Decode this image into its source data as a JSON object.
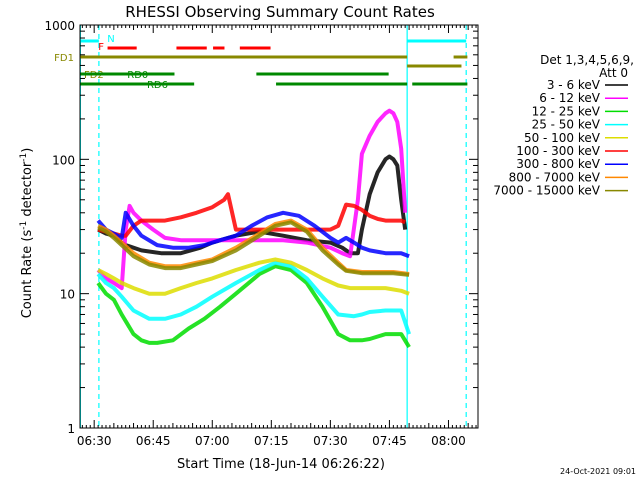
{
  "chart_data": {
    "type": "line",
    "title": "RHESSI Observing Summary Count Rates",
    "xlabel": "Start Time (18-Jun-14 06:26:22)",
    "ylabel_main": "Count Rate (s",
    "ylabel_sup1": "-1",
    "ylabel_mid": " detector",
    "ylabel_sup2": "-1",
    "ylabel_end": ")",
    "yscale": "log",
    "ylim": [
      1,
      1000
    ],
    "xlim_min": [
      386.4,
      487.5
    ],
    "x_ticks": [
      {
        "label": "06:30",
        "m": 390
      },
      {
        "label": "06:45",
        "m": 405
      },
      {
        "label": "07:00",
        "m": 420
      },
      {
        "label": "07:15",
        "m": 435
      },
      {
        "label": "07:30",
        "m": 450
      },
      {
        "label": "07:45",
        "m": 465
      },
      {
        "label": "08:00",
        "m": 480
      }
    ],
    "y_ticks": [
      {
        "label": "1",
        "v": 1
      },
      {
        "label": "10",
        "v": 10
      },
      {
        "label": "100",
        "v": 100
      },
      {
        "label": "1000",
        "v": 1000
      }
    ],
    "legend": {
      "header1": "Det 1,3,4,5,6,9,",
      "header2": "Att 0",
      "entries": [
        {
          "label": "3 - 6 keV",
          "color": "#000000"
        },
        {
          "label": "6 - 12 keV",
          "color": "#ff00ff"
        },
        {
          "label": "12 - 25 keV",
          "color": "#00dd00"
        },
        {
          "label": "25 - 50 keV",
          "color": "#00ffff"
        },
        {
          "label": "50 - 100 keV",
          "color": "#dddd00"
        },
        {
          "label": "100 - 300 keV",
          "color": "#ff0000"
        },
        {
          "label": "300 - 800 keV",
          "color": "#0000ff"
        },
        {
          "label": "800 - 7000 keV",
          "color": "#ff8800"
        },
        {
          "label": "7000 - 15000 keV",
          "color": "#888800"
        }
      ]
    },
    "series": [
      {
        "name": "3 - 6 keV",
        "color": "#000000",
        "x": [
          391,
          393,
          395,
          397,
          398,
          402,
          407,
          412,
          417,
          420,
          426,
          432,
          438,
          444,
          450,
          453,
          455,
          457,
          458,
          460,
          462,
          464,
          465,
          466,
          467,
          468,
          469
        ],
        "y": [
          30,
          28,
          27,
          24,
          23,
          21,
          20,
          20,
          22,
          24,
          27,
          29,
          27,
          25,
          24,
          22,
          20,
          20,
          30,
          55,
          80,
          100,
          105,
          100,
          90,
          50,
          30
        ]
      },
      {
        "name": "6 - 12 keV",
        "color": "#ff00ff",
        "x": [
          391,
          393,
          395,
          397,
          398,
          399,
          400,
          402,
          405,
          408,
          412,
          417,
          420,
          426,
          432,
          438,
          444,
          450,
          453,
          455,
          457,
          458,
          460,
          462,
          464,
          465,
          466,
          467,
          468,
          469
        ],
        "y": [
          15,
          13,
          12,
          11,
          30,
          45,
          40,
          35,
          30,
          26,
          25,
          25,
          25,
          25,
          25,
          25,
          24,
          22,
          20,
          19,
          50,
          110,
          150,
          190,
          220,
          230,
          220,
          190,
          120,
          40
        ]
      },
      {
        "name": "12 - 25 keV",
        "color": "#00dd00",
        "x": [
          391,
          393,
          395,
          397,
          400,
          402,
          404,
          406,
          410,
          414,
          418,
          422,
          426,
          432,
          436,
          440,
          444,
          448,
          452,
          455,
          457,
          458,
          460,
          464,
          468,
          470
        ],
        "y": [
          12,
          10,
          9,
          7,
          5,
          4.5,
          4.3,
          4.3,
          4.5,
          5.5,
          6.5,
          8,
          10,
          14,
          16,
          15,
          12,
          8,
          5,
          4.5,
          4.5,
          4.5,
          4.6,
          5,
          5,
          4
        ]
      },
      {
        "name": "25 - 50 keV",
        "color": "#00ffff",
        "x": [
          391,
          393,
          395,
          397,
          400,
          404,
          408,
          412,
          416,
          420,
          426,
          432,
          436,
          440,
          444,
          448,
          452,
          456,
          458,
          460,
          464,
          468,
          470
        ],
        "y": [
          14,
          12,
          11,
          9.5,
          7.5,
          6.5,
          6.5,
          7,
          8,
          9.5,
          12,
          15,
          17,
          16,
          13,
          9.5,
          7,
          6.8,
          7,
          7.3,
          7.5,
          7.5,
          5
        ]
      },
      {
        "name": "50 - 100 keV",
        "color": "#dddd00",
        "x": [
          391,
          393,
          395,
          397,
          400,
          404,
          408,
          412,
          416,
          420,
          426,
          432,
          436,
          440,
          444,
          448,
          452,
          455,
          458,
          460,
          464,
          468,
          470
        ],
        "y": [
          15,
          14,
          13,
          12,
          11,
          10,
          10,
          11,
          12,
          13,
          15,
          17,
          18,
          17,
          15,
          13,
          11.5,
          11,
          11,
          11,
          11,
          10.5,
          10
        ]
      },
      {
        "name": "100 - 300 keV",
        "color": "#ff0000",
        "x": [
          391,
          393,
          395,
          397,
          398,
          400,
          402,
          404,
          408,
          412,
          416,
          420,
          423,
          424,
          426,
          430,
          434,
          438,
          442,
          446,
          450,
          452,
          454,
          456,
          458,
          460,
          462,
          464,
          466,
          468,
          469
        ],
        "y": [
          30,
          29,
          28,
          27,
          27,
          32,
          35,
          35,
          35,
          37,
          40,
          44,
          50,
          55,
          30,
          30,
          30,
          30,
          30,
          30,
          30,
          32,
          46,
          45,
          42,
          38,
          36,
          35,
          35,
          35,
          34
        ]
      },
      {
        "name": "300 - 800 keV",
        "color": "#0000ff",
        "x": [
          391,
          393,
          395,
          397,
          398,
          400,
          402,
          406,
          410,
          414,
          418,
          422,
          426,
          430,
          434,
          438,
          442,
          446,
          450,
          452,
          454,
          456,
          458,
          460,
          464,
          468,
          470
        ],
        "y": [
          35,
          30,
          28,
          26,
          40,
          32,
          27,
          23,
          22,
          22,
          23,
          25,
          27,
          32,
          37,
          40,
          38,
          32,
          26,
          24,
          26,
          24,
          22,
          21,
          20,
          20,
          19
        ]
      },
      {
        "name": "800 - 7000 keV",
        "color": "#ff8800",
        "x": [
          391,
          393,
          395,
          397,
          400,
          404,
          408,
          412,
          416,
          420,
          426,
          432,
          436,
          440,
          444,
          448,
          452,
          454,
          458,
          462,
          466,
          470
        ],
        "y": [
          32,
          30,
          27,
          24,
          20,
          17,
          16,
          16,
          17,
          18,
          22,
          28,
          33,
          35,
          30,
          22,
          17,
          15,
          14.5,
          14.5,
          14.5,
          14
        ]
      },
      {
        "name": "7000 - 15000 keV",
        "color": "#888800",
        "x": [
          391,
          393,
          395,
          397,
          400,
          404,
          408,
          412,
          416,
          420,
          426,
          432,
          436,
          440,
          444,
          448,
          452,
          454,
          458,
          462,
          466,
          470
        ],
        "y": [
          31,
          29,
          26,
          23,
          19,
          16.5,
          15.5,
          15.5,
          16.5,
          17.5,
          21,
          27,
          32,
          34,
          29,
          21,
          16.5,
          14.8,
          14.2,
          14.2,
          14.2,
          13.8
        ]
      }
    ],
    "flags": [
      {
        "label": "N",
        "color": "#00ffff",
        "label_at": 392.8,
        "label_side": "right",
        "segments": [
          [
            386.4,
            391.2
          ],
          [
            469.5,
            484.5
          ]
        ]
      },
      {
        "label": "F",
        "color": "#ff0000",
        "label_at": 392.5,
        "label_side": "left",
        "segments": [
          [
            393.4,
            400.8
          ],
          [
            410.9,
            418.6
          ],
          [
            420.2,
            423.1
          ],
          [
            427.0,
            434.8
          ]
        ]
      },
      {
        "label": "FD1",
        "color": "#888800",
        "label_at": 386.4,
        "label_side": "outside",
        "segments": [
          [
            386.4,
            469.5
          ],
          [
            481.3,
            484.8
          ]
        ]
      },
      {
        "label": "FD2",
        "color": "#888800",
        "label_at": 386.9,
        "label_side": "right",
        "segments": [
          [
            469.5,
            483.3
          ]
        ]
      },
      {
        "label": "RD0",
        "color": "#008800",
        "label_at": 397.9,
        "label_side": "right",
        "segments": [
          [
            386.4,
            410.4
          ],
          [
            431.2,
            464.8
          ]
        ]
      },
      {
        "label": "RD6",
        "color": "#008800",
        "label_at": 402.9,
        "label_side": "right",
        "segments": [
          [
            386.4,
            415.4
          ],
          [
            436.2,
            469.5
          ],
          [
            470.8,
            484.8
          ]
        ]
      }
    ],
    "vlines": [
      {
        "m": 386.5,
        "color": "#00ffff",
        "style": "solid"
      },
      {
        "m": 391.2,
        "color": "#00ffff",
        "style": "dashed"
      },
      {
        "m": 469.5,
        "color": "#00ffff",
        "style": "solid"
      },
      {
        "m": 484.5,
        "color": "#00ffff",
        "style": "dashed"
      }
    ],
    "timestamp": "24-Oct-2021 09:01"
  }
}
